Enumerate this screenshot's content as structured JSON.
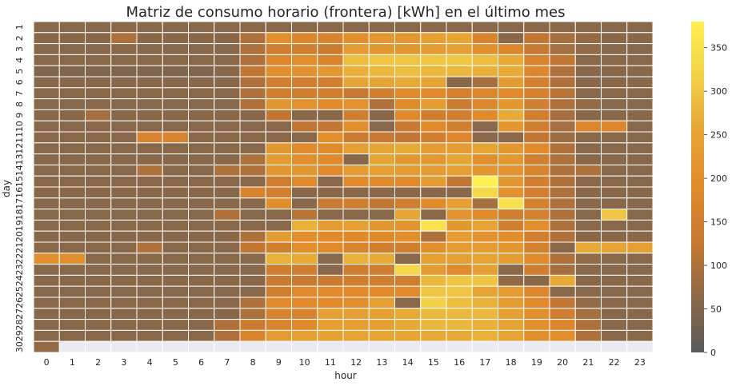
{
  "chart_data": {
    "type": "heatmap",
    "title": "Matriz de consumo horario (frontera) [kWh] en el último mes",
    "xlabel": "hour",
    "ylabel": "day",
    "x_categories": [
      "0",
      "1",
      "2",
      "3",
      "4",
      "5",
      "6",
      "7",
      "8",
      "9",
      "10",
      "11",
      "12",
      "13",
      "14",
      "15",
      "16",
      "17",
      "18",
      "19",
      "20",
      "21",
      "22",
      "23"
    ],
    "y_categories": [
      "1",
      "2",
      "3",
      "4",
      "5",
      "6",
      "7",
      "8",
      "9",
      "10",
      "11",
      "12",
      "13",
      "14",
      "15",
      "16",
      "17",
      "18",
      "19",
      "20",
      "21",
      "22",
      "23",
      "24",
      "25",
      "26",
      "27",
      "28",
      "29",
      "30"
    ],
    "colorbar": {
      "min": 0,
      "max": 380,
      "ticks": [
        0,
        50,
        100,
        150,
        200,
        250,
        300,
        350
      ]
    },
    "colormap": [
      "#5a5a5a",
      "#8c6848",
      "#c77832",
      "#e08a2c",
      "#e6a534",
      "#f2d049",
      "#fef050"
    ],
    "missing_color": "#eaeaf2",
    "values": [
      [
        60,
        60,
        60,
        60,
        60,
        60,
        60,
        60,
        60,
        60,
        60,
        60,
        60,
        60,
        60,
        60,
        60,
        60,
        60,
        60,
        60,
        60,
        60,
        60
      ],
      [
        60,
        60,
        60,
        100,
        60,
        60,
        60,
        60,
        100,
        200,
        180,
        170,
        200,
        220,
        220,
        240,
        250,
        170,
        60,
        120,
        90,
        70,
        60,
        60
      ],
      [
        60,
        60,
        60,
        60,
        60,
        60,
        60,
        60,
        100,
        150,
        150,
        140,
        230,
        220,
        220,
        230,
        240,
        200,
        180,
        130,
        90,
        70,
        60,
        60
      ],
      [
        60,
        60,
        60,
        60,
        60,
        60,
        60,
        60,
        100,
        180,
        200,
        170,
        290,
        300,
        300,
        300,
        300,
        290,
        260,
        170,
        120,
        60,
        60,
        60
      ],
      [
        50,
        50,
        50,
        50,
        50,
        50,
        50,
        60,
        120,
        200,
        210,
        220,
        270,
        280,
        290,
        280,
        280,
        270,
        260,
        180,
        100,
        60,
        60,
        60
      ],
      [
        60,
        60,
        60,
        60,
        60,
        60,
        60,
        60,
        100,
        150,
        150,
        150,
        250,
        250,
        260,
        250,
        60,
        90,
        230,
        160,
        100,
        60,
        60,
        60
      ],
      [
        60,
        60,
        60,
        60,
        60,
        60,
        60,
        60,
        100,
        150,
        150,
        150,
        130,
        150,
        190,
        190,
        160,
        180,
        190,
        160,
        110,
        60,
        60,
        60
      ],
      [
        60,
        60,
        60,
        60,
        60,
        60,
        60,
        60,
        100,
        220,
        210,
        190,
        210,
        100,
        190,
        230,
        140,
        180,
        220,
        150,
        100,
        70,
        60,
        60
      ],
      [
        60,
        60,
        90,
        60,
        60,
        60,
        60,
        60,
        60,
        120,
        60,
        60,
        150,
        60,
        190,
        150,
        150,
        190,
        260,
        150,
        90,
        60,
        60,
        60
      ],
      [
        60,
        60,
        60,
        60,
        60,
        60,
        60,
        60,
        60,
        60,
        120,
        120,
        200,
        60,
        130,
        190,
        150,
        60,
        220,
        150,
        90,
        180,
        180,
        60
      ],
      [
        60,
        60,
        60,
        60,
        170,
        170,
        60,
        60,
        60,
        60,
        60,
        200,
        140,
        130,
        120,
        150,
        180,
        60,
        60,
        120,
        80,
        60,
        60,
        60
      ],
      [
        60,
        60,
        60,
        60,
        60,
        60,
        60,
        60,
        60,
        220,
        190,
        190,
        240,
        250,
        260,
        230,
        230,
        250,
        220,
        190,
        100,
        60,
        60,
        60
      ],
      [
        60,
        60,
        60,
        60,
        60,
        60,
        60,
        60,
        100,
        230,
        200,
        190,
        60,
        250,
        220,
        220,
        250,
        200,
        220,
        150,
        100,
        60,
        60,
        60
      ],
      [
        60,
        60,
        60,
        60,
        100,
        60,
        60,
        100,
        100,
        220,
        220,
        190,
        230,
        240,
        230,
        230,
        240,
        220,
        210,
        170,
        100,
        100,
        60,
        60
      ],
      [
        60,
        60,
        60,
        60,
        60,
        60,
        60,
        60,
        60,
        150,
        190,
        60,
        190,
        190,
        190,
        230,
        120,
        380,
        220,
        150,
        100,
        60,
        60,
        60
      ],
      [
        60,
        60,
        60,
        60,
        60,
        60,
        60,
        60,
        170,
        150,
        60,
        60,
        60,
        60,
        60,
        60,
        60,
        330,
        210,
        150,
        100,
        60,
        60,
        60
      ],
      [
        60,
        60,
        60,
        60,
        60,
        60,
        60,
        60,
        60,
        200,
        60,
        130,
        150,
        120,
        150,
        190,
        240,
        90,
        350,
        160,
        100,
        60,
        60,
        60
      ],
      [
        60,
        60,
        60,
        60,
        60,
        60,
        60,
        100,
        60,
        60,
        110,
        60,
        60,
        60,
        250,
        60,
        210,
        190,
        150,
        160,
        100,
        60,
        300,
        60
      ],
      [
        60,
        60,
        60,
        60,
        60,
        60,
        60,
        60,
        60,
        60,
        270,
        230,
        240,
        220,
        210,
        350,
        220,
        250,
        150,
        200,
        100,
        60,
        60,
        60
      ],
      [
        60,
        60,
        60,
        60,
        60,
        60,
        60,
        60,
        100,
        230,
        200,
        190,
        190,
        190,
        200,
        100,
        230,
        210,
        200,
        150,
        100,
        60,
        60,
        60
      ],
      [
        60,
        60,
        60,
        60,
        100,
        60,
        60,
        60,
        120,
        150,
        200,
        190,
        170,
        150,
        150,
        200,
        230,
        230,
        220,
        160,
        60,
        260,
        250,
        240
      ],
      [
        200,
        200,
        60,
        60,
        60,
        60,
        60,
        60,
        60,
        270,
        260,
        60,
        270,
        260,
        60,
        240,
        240,
        250,
        230,
        190,
        100,
        70,
        60,
        60
      ],
      [
        60,
        60,
        60,
        60,
        60,
        60,
        60,
        60,
        60,
        150,
        150,
        60,
        150,
        150,
        330,
        230,
        190,
        240,
        60,
        150,
        90,
        60,
        60,
        60
      ],
      [
        60,
        60,
        60,
        60,
        60,
        60,
        60,
        60,
        60,
        130,
        130,
        130,
        150,
        150,
        150,
        280,
        300,
        300,
        70,
        60,
        260,
        60,
        60,
        60
      ],
      [
        60,
        60,
        60,
        60,
        60,
        60,
        60,
        60,
        60,
        150,
        190,
        190,
        190,
        190,
        190,
        300,
        300,
        250,
        230,
        180,
        60,
        60,
        60,
        60
      ],
      [
        60,
        60,
        60,
        60,
        60,
        60,
        60,
        60,
        100,
        190,
        190,
        190,
        200,
        240,
        60,
        320,
        290,
        270,
        230,
        190,
        120,
        70,
        60,
        60
      ],
      [
        60,
        60,
        60,
        60,
        60,
        60,
        60,
        60,
        100,
        170,
        170,
        240,
        240,
        240,
        260,
        280,
        280,
        280,
        240,
        200,
        150,
        90,
        60,
        60
      ],
      [
        60,
        60,
        60,
        60,
        60,
        60,
        60,
        100,
        140,
        170,
        190,
        240,
        240,
        240,
        260,
        280,
        280,
        270,
        250,
        200,
        180,
        100,
        60,
        60
      ],
      [
        60,
        60,
        60,
        60,
        60,
        60,
        60,
        100,
        170,
        230,
        240,
        240,
        250,
        250,
        250,
        260,
        260,
        270,
        250,
        200,
        200,
        100,
        60,
        60
      ],
      [
        70,
        null,
        null,
        null,
        null,
        null,
        null,
        null,
        null,
        null,
        null,
        null,
        null,
        null,
        null,
        null,
        null,
        null,
        null,
        null,
        null,
        null,
        null,
        null
      ]
    ]
  }
}
